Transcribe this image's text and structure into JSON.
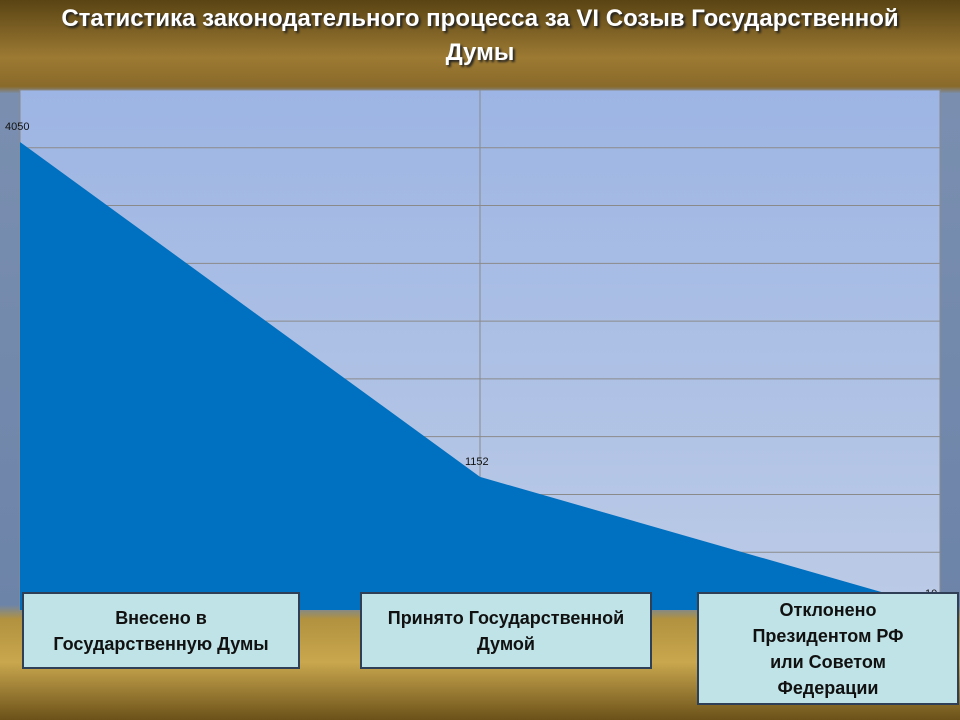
{
  "chart_data": {
    "type": "area",
    "title": "Статистика законодательного процесса за VI Созыв Государственной Думы",
    "categories": [
      "Внесено в Государственную Думы",
      "Принято Государственной Думой",
      "Отклонено Президентом РФ или Советом Федерации"
    ],
    "values": [
      4050,
      1152,
      10
    ],
    "color": "#0070c0",
    "ylim": [
      0,
      4500
    ],
    "yticks": [
      0,
      500,
      1000,
      1500,
      2000,
      2500,
      3000,
      3500,
      4000,
      4500
    ],
    "grid": true
  }
}
